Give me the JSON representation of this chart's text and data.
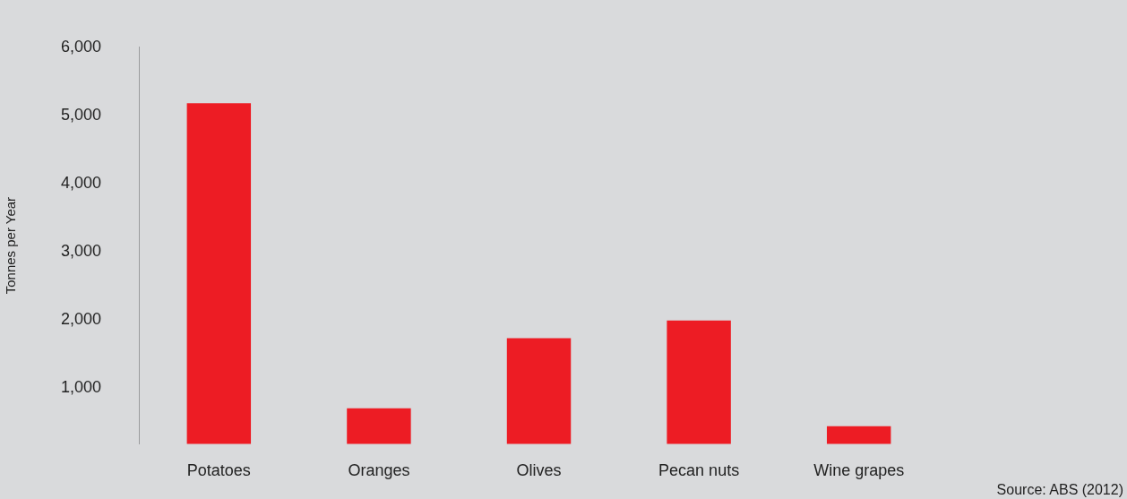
{
  "chart_data": {
    "type": "bar",
    "ylabel": "Tonnes per Year",
    "categories": [
      "Potatoes",
      "Oranges",
      "Olives",
      "Pecan nuts",
      "Wine grapes"
    ],
    "values": [
      5180,
      700,
      1730,
      1990,
      440
    ],
    "color": "#ed1c24",
    "ylim": [
      180,
      6000
    ],
    "yticks": [
      {
        "value": 1000,
        "label": "1,000"
      },
      {
        "value": 2000,
        "label": "2,000"
      },
      {
        "value": 3000,
        "label": "3,000"
      },
      {
        "value": 4000,
        "label": "4,000"
      },
      {
        "value": 5000,
        "label": "5,000"
      },
      {
        "value": 6000,
        "label": "6,000"
      }
    ],
    "grid": false,
    "legend": false,
    "annotations": [
      "Source: ABS (2012)"
    ]
  }
}
